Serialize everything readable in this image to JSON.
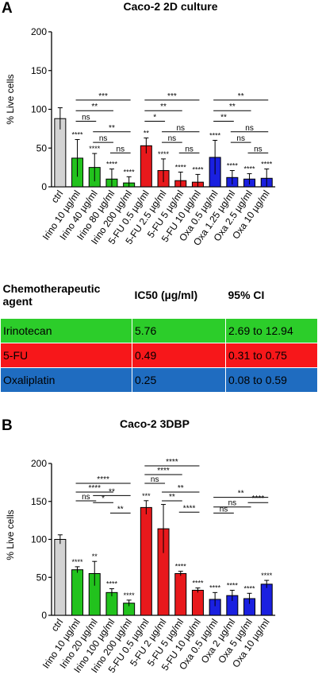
{
  "chart_data": [
    {
      "type": "bar",
      "panel": "A",
      "title": "Caco-2 2D culture",
      "ylabel": "% Live cells",
      "ylim": [
        0,
        200
      ],
      "yticks": [
        0,
        50,
        100,
        150,
        200
      ],
      "categories": [
        "ctrl",
        "Irino 10 µg/ml",
        "Irino 40 µg/ml",
        "Irino 80 µg/ml",
        "Irino 200 µg/ml",
        "5-FU 0.5 µg/ml",
        "5-FU 2.5 µg/ml",
        "5-FU 5 µg/ml",
        "5-FU 10 µg/ml",
        "Oxa 0.5 µg/ml",
        "Oxa 1.25 µg/ml",
        "Oxa 2.5 µg/ml",
        "Oxa 10 µg/ml"
      ],
      "values": [
        88,
        37,
        25,
        10,
        5,
        53,
        21,
        8,
        6,
        38,
        12,
        10,
        11
      ],
      "errors": [
        14,
        24,
        18,
        13,
        8,
        10,
        15,
        11,
        10,
        22,
        9,
        7,
        12
      ],
      "colors": [
        "#d3d3d3",
        "#22c21d",
        "#22c21d",
        "#22c21d",
        "#22c21d",
        "#e8191c",
        "#e8191c",
        "#e8191c",
        "#e8191c",
        "#1a20e0",
        "#1a20e0",
        "#1a20e0",
        "#1a20e0"
      ],
      "bar_labels": [
        "",
        "****",
        "****",
        "****",
        "****",
        "**",
        "****",
        "****",
        "****",
        "****",
        "****",
        "****",
        "****"
      ],
      "comparisons": [
        {
          "from": 1,
          "to": 4,
          "label": "***",
          "level": 7
        },
        {
          "from": 1,
          "to": 3,
          "label": "**",
          "level": 6
        },
        {
          "from": 1,
          "to": 2,
          "label": "ns",
          "level": 5
        },
        {
          "from": 2,
          "to": 4,
          "label": "**",
          "level": 4
        },
        {
          "from": 2,
          "to": 3,
          "label": "ns",
          "level": 3
        },
        {
          "from": 3,
          "to": 4,
          "label": "ns",
          "level": 2
        },
        {
          "from": 5,
          "to": 8,
          "label": "***",
          "level": 7
        },
        {
          "from": 5,
          "to": 7,
          "label": "**",
          "level": 6
        },
        {
          "from": 5,
          "to": 6,
          "label": "*",
          "level": 5
        },
        {
          "from": 6,
          "to": 8,
          "label": "ns",
          "level": 4
        },
        {
          "from": 6,
          "to": 7,
          "label": "ns",
          "level": 3
        },
        {
          "from": 7,
          "to": 8,
          "label": "ns",
          "level": 2
        },
        {
          "from": 9,
          "to": 12,
          "label": "**",
          "level": 7
        },
        {
          "from": 9,
          "to": 11,
          "label": "**",
          "level": 6
        },
        {
          "from": 9,
          "to": 10,
          "label": "**",
          "level": 5
        },
        {
          "from": 10,
          "to": 12,
          "label": "ns",
          "level": 4
        },
        {
          "from": 10,
          "to": 11,
          "label": "ns",
          "level": 3
        },
        {
          "from": 11,
          "to": 12,
          "label": "ns",
          "level": 2
        }
      ]
    },
    {
      "type": "bar",
      "panel": "B",
      "title": "Caco-2 3DBP",
      "ylabel": "% Live cells",
      "ylim": [
        0,
        200
      ],
      "yticks": [
        0,
        50,
        100,
        150,
        200
      ],
      "categories": [
        "ctrl",
        "Irino 10 µg/ml",
        "Irino 20 µg/ml",
        "Irino 100 µg/ml",
        "Irino 200 µg/ml",
        "5-FU 0.5 µg/ml",
        "5-FU 2 µg/ml",
        "5-FU 5 µg/ml",
        "5-FU 10 µg/ml",
        "Oxa 0.5 µg/ml",
        "Oxa 2 µg/ml",
        "Oxa 5 µg/ml",
        "Oxa 10 µg/ml"
      ],
      "values": [
        100,
        60,
        55,
        30,
        16,
        142,
        114,
        55,
        33,
        21,
        26,
        22,
        41
      ],
      "errors": [
        6,
        4,
        16,
        5,
        4,
        9,
        32,
        3,
        3,
        9,
        7,
        7,
        5
      ],
      "colors": [
        "#d3d3d3",
        "#22c21d",
        "#22c21d",
        "#22c21d",
        "#22c21d",
        "#e8191c",
        "#e8191c",
        "#e8191c",
        "#e8191c",
        "#1a20e0",
        "#1a20e0",
        "#1a20e0",
        "#1a20e0"
      ],
      "bar_labels": [
        "",
        "****",
        "**",
        "****",
        "****",
        "***",
        "",
        "****",
        "****",
        "****",
        "****",
        "****",
        "****"
      ],
      "comparisons": [
        {
          "from": 1,
          "to": 4,
          "label": "****",
          "level": 5
        },
        {
          "from": 1,
          "to": 3,
          "label": "****",
          "level": 4
        },
        {
          "from": 1,
          "to": 2,
          "label": "ns",
          "level": 3
        },
        {
          "from": 2,
          "to": 4,
          "label": "**",
          "level": 3.6
        },
        {
          "from": 2,
          "to": 3,
          "label": "*",
          "level": 2.8
        },
        {
          "from": 3,
          "to": 4,
          "label": "**",
          "level": 1.6
        },
        {
          "from": 5,
          "to": 8,
          "label": "****",
          "level": 7
        },
        {
          "from": 5,
          "to": 7,
          "label": "****",
          "level": 6
        },
        {
          "from": 5,
          "to": 6,
          "label": "ns",
          "level": 5
        },
        {
          "from": 6,
          "to": 8,
          "label": "**",
          "level": 4
        },
        {
          "from": 6,
          "to": 7,
          "label": "**",
          "level": 3
        },
        {
          "from": 7,
          "to": 8,
          "label": "****",
          "level": 1.7
        },
        {
          "from": 9,
          "to": 12,
          "label": "**",
          "level": 3.4
        },
        {
          "from": 11,
          "to": 12,
          "label": "****",
          "level": 2.8
        },
        {
          "from": 9,
          "to": 11,
          "label": "ns",
          "level": 2.3
        },
        {
          "from": 9,
          "to": 10,
          "label": "ns",
          "level": 1.6
        }
      ]
    }
  ],
  "ic50_table": {
    "headers": [
      "Chemotherapeutic\nagent",
      "IC50 (µg/ml)",
      "95% CI"
    ],
    "rows": [
      {
        "agent": "Irinotecan",
        "ic50": "5.76",
        "ci": "2.69 to 12.94",
        "color": "#2ccd2a"
      },
      {
        "agent": "5-FU",
        "ic50": "0.49",
        "ci": "0.31 to 0.75",
        "color": "#f7171a"
      },
      {
        "agent": "Oxaliplatin",
        "ic50": "0.25",
        "ci": "0.08 to 0.59",
        "color": "#1f6cc0"
      }
    ]
  }
}
